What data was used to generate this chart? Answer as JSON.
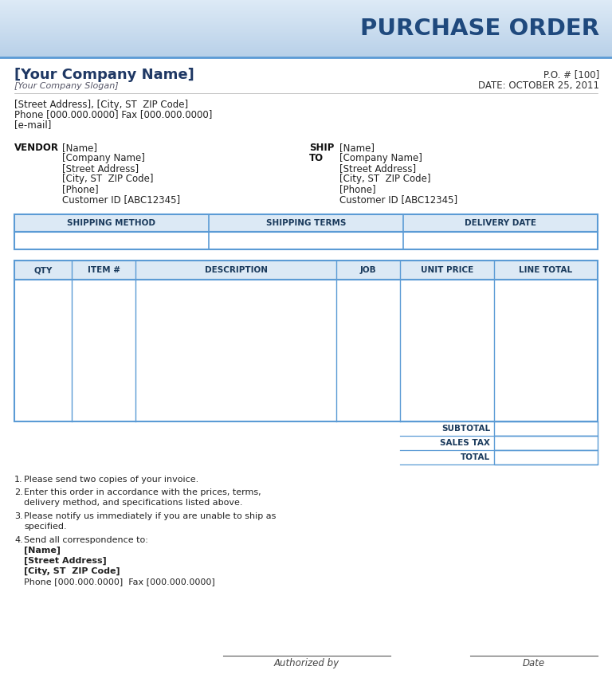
{
  "title": "PURCHASE ORDER",
  "title_color": "#1f497d",
  "company_name": "[Your Company Name]",
  "company_slogan": "[Your Company Slogan]",
  "company_address": "[Street Address], [City, ST  ZIP Code]",
  "company_phone": "Phone [000.000.0000] Fax [000.000.0000]",
  "company_email": "[e-mail]",
  "po_number": "P.O. # [100]",
  "po_date": "DATE: OCTOBER 25, 2011",
  "vendor_label": "VENDOR",
  "vendor_lines": [
    "[Name]",
    "[Company Name]",
    "[Street Address]",
    "[City, ST  ZIP Code]",
    "[Phone]",
    "Customer ID [ABC12345]"
  ],
  "ship_lines": [
    "[Name]",
    "[Company Name]",
    "[Street Address]",
    "[City, ST  ZIP Code]",
    "[Phone]",
    "Customer ID [ABC12345]"
  ],
  "shipping_headers": [
    "SHIPPING METHOD",
    "SHIPPING TERMS",
    "DELIVERY DATE"
  ],
  "order_headers": [
    "QTY",
    "ITEM #",
    "DESCRIPTION",
    "JOB",
    "UNIT PRICE",
    "LINE TOTAL"
  ],
  "summary_labels": [
    "SUBTOTAL",
    "SALES TAX",
    "TOTAL"
  ],
  "note1": "Please send two copies of your invoice.",
  "note2a": "Enter this order in accordance with the prices, terms,",
  "note2b": "delivery method, and specifications listed above.",
  "note3a": "Please notify us immediately if you are unable to ship as",
  "note3b": "specified.",
  "note4_intro": "Send all correspondence to:",
  "note4_name": "[Name]",
  "note4_street": "[Street Address]",
  "note4_city": "[City, ST  ZIP Code]",
  "note4_phone": "Phone [000.000.0000]  Fax [000.000.0000]",
  "authorized_by": "Authorized by",
  "date_label": "Date",
  "table_header_bg": "#dce9f5",
  "table_border_color": "#5b9bd5",
  "header_grad_top": "#b8d0e8",
  "header_grad_bot": "#ddeaf6",
  "page_bg": "#ffffff",
  "text_dark": "#1a1a2e",
  "text_gray": "#333333",
  "company_name_color": "#1f3864",
  "label_bold_color": "#1f3864"
}
